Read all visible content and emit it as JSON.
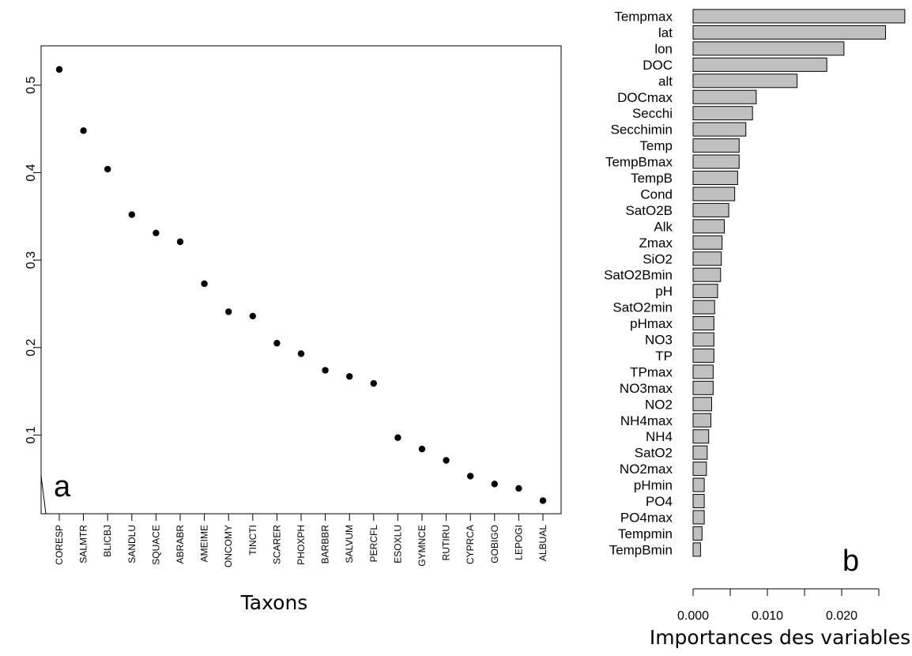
{
  "chart_data": [
    {
      "type": "scatter",
      "panel_label": "a",
      "xlabel": "Taxons",
      "ylabel": "",
      "ylim": [
        0.01,
        0.545
      ],
      "yticks": [
        "0.1",
        "0.2",
        "0.3",
        "0.4",
        "0.5"
      ],
      "ytick_values": [
        0.1,
        0.2,
        0.3,
        0.4,
        0.5
      ],
      "categories": [
        "CORESP",
        "SALMTR",
        "BLICBJ",
        "SANDLU",
        "SQUACE",
        "ABRABR",
        "AMEIME",
        "ONCOMY",
        "TINCTI",
        "SCARER",
        "PHOXPH",
        "BARBBR",
        "SALVUM",
        "PERCFL",
        "ESOXLU",
        "GYMNCE",
        "RUTIRU",
        "CYPRCA",
        "GOBIGO",
        "LEPOGI",
        "ALBUAL"
      ],
      "values": [
        0.518,
        0.448,
        0.404,
        0.352,
        0.331,
        0.321,
        0.273,
        0.241,
        0.236,
        0.205,
        0.193,
        0.174,
        0.167,
        0.159,
        0.097,
        0.084,
        0.071,
        0.053,
        0.044,
        0.039,
        0.025
      ],
      "grid": false
    },
    {
      "type": "bar",
      "orientation": "horizontal",
      "panel_label": "b",
      "xlabel": "Importances des variables",
      "ylabel": "",
      "xlim": [
        0,
        0.0285
      ],
      "xticks": [
        "0.000",
        "0.010",
        "0.020"
      ],
      "xtick_values": [
        0,
        0.005,
        0.01,
        0.015,
        0.02,
        0.025
      ],
      "xtick_label_values": [
        0,
        0.01,
        0.02
      ],
      "categories": [
        "Tempmax",
        "lat",
        "lon",
        "DOC",
        "alt",
        "DOCmax",
        "Secchi",
        "Secchimin",
        "Temp",
        "TempBmax",
        "TempB",
        "Cond",
        "SatO2B",
        "Alk",
        "Zmax",
        "SiO2",
        "SatO2Bmin",
        "pH",
        "SatO2min",
        "pHmax",
        "NO3",
        "TP",
        "TPmax",
        "NO3max",
        "NO2",
        "NH4max",
        "NH4",
        "SatO2",
        "NO2max",
        "pHmin",
        "PO4",
        "PO4max",
        "Tempmin",
        "TempBmin"
      ],
      "values": [
        0.0285,
        0.0259,
        0.0203,
        0.018,
        0.014,
        0.0085,
        0.008,
        0.0071,
        0.0062,
        0.0062,
        0.006,
        0.0056,
        0.0048,
        0.0042,
        0.0039,
        0.0038,
        0.0037,
        0.0033,
        0.0029,
        0.0028,
        0.0028,
        0.0028,
        0.0027,
        0.0027,
        0.0025,
        0.0024,
        0.0021,
        0.0019,
        0.0018,
        0.0015,
        0.0015,
        0.0015,
        0.0012,
        0.001
      ],
      "bar_color": "#c0c0c0",
      "grid": false
    }
  ]
}
